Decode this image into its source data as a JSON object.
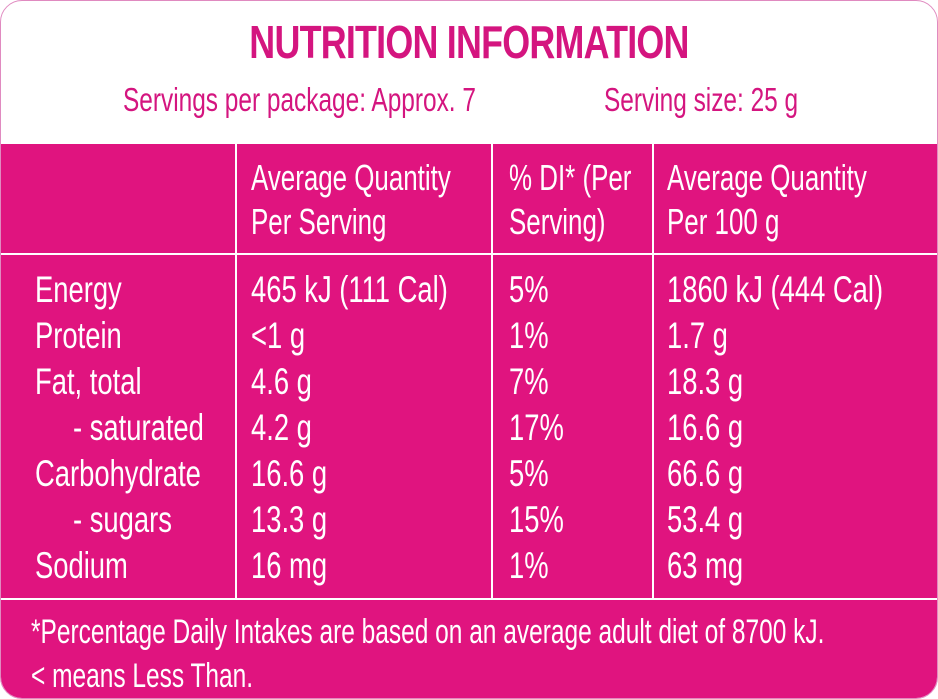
{
  "title": "NUTRITION INFORMATION",
  "servings_per_package": "Servings per package: Approx. 7",
  "serving_size": "Serving size: 25 g",
  "headers": {
    "col1": "",
    "col2": [
      "Average Quantity",
      "Per Serving"
    ],
    "col3": [
      "% DI* (Per",
      "Serving)"
    ],
    "col4": [
      "Average Quantity",
      "Per 100 g"
    ]
  },
  "rows": [
    {
      "label": "Energy",
      "per_serving": "465 kJ (111 Cal)",
      "di": "5%",
      "per_100g": "1860 kJ (444 Cal)"
    },
    {
      "label": "Protein",
      "per_serving": "<1 g",
      "di": "1%",
      "per_100g": "1.7 g"
    },
    {
      "label": "Fat, total",
      "per_serving": "4.6 g",
      "di": "7%",
      "per_100g": "18.3 g"
    },
    {
      "label": "- saturated",
      "per_serving": "4.2 g",
      "di": "17%",
      "per_100g": "16.6 g"
    },
    {
      "label": "Carbohydrate",
      "per_serving": "16.6 g",
      "di": "5%",
      "per_100g": "66.6 g"
    },
    {
      "label": "- sugars",
      "per_serving": "13.3 g",
      "di": "15%",
      "per_100g": "53.4 g"
    },
    {
      "label": "Sodium",
      "per_serving": "16 mg",
      "di": "1%",
      "per_100g": "63 mg"
    }
  ],
  "footnotes": [
    "*Percentage Daily Intakes are based on an average adult diet of 8700 kJ.",
    "< means Less Than."
  ],
  "colors": {
    "accent": "#e0147f",
    "title_text": "#d4157f",
    "background": "#ffffff"
  }
}
